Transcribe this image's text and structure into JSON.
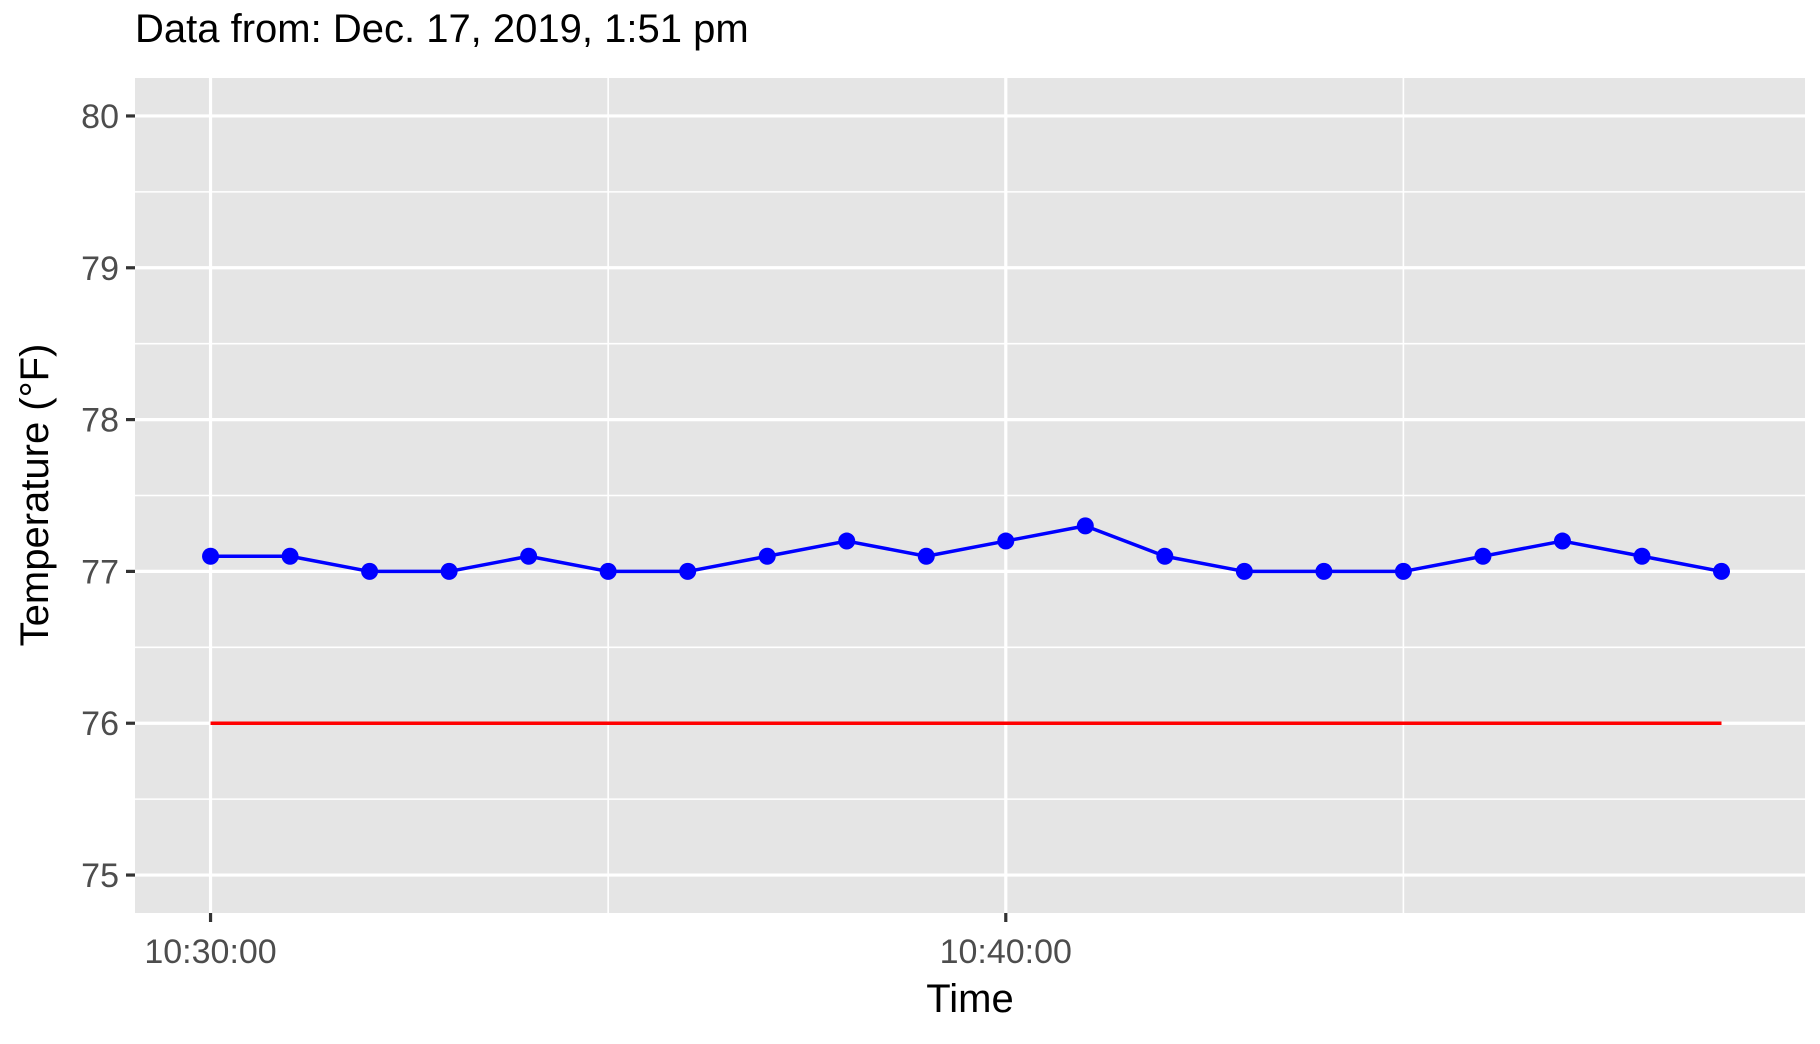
{
  "chart_data": {
    "type": "line",
    "title": "Data from: Dec. 17, 2019, 1:51 pm",
    "xlabel": "Time",
    "ylabel": "Temperature (°F)",
    "ylim": [
      74.75,
      80.25
    ],
    "xlim_minutes": [
      -0.95,
      20.05
    ],
    "yticks": [
      75,
      76,
      77,
      78,
      79,
      80
    ],
    "xticks": [
      {
        "label": "10:30:00",
        "minute": 0
      },
      {
        "label": "10:40:00",
        "minute": 10
      }
    ],
    "grid": true,
    "panel_background": "#e5e5e5",
    "series": [
      {
        "color": "#0000ff",
        "marker": "circle",
        "x": [
          "10:30:00",
          "10:31:00",
          "10:32:00",
          "10:33:00",
          "10:34:00",
          "10:35:00",
          "10:36:00",
          "10:37:00",
          "10:38:00",
          "10:39:00",
          "10:40:00",
          "10:41:00",
          "10:42:00",
          "10:43:00",
          "10:44:00",
          "10:45:00",
          "10:46:00",
          "10:47:00",
          "10:48:00",
          "10:49:00"
        ],
        "values": [
          77.1,
          77.1,
          77.0,
          77.0,
          77.1,
          77.0,
          77.0,
          77.1,
          77.2,
          77.1,
          77.2,
          77.3,
          77.1,
          77.0,
          77.0,
          77.0,
          77.1,
          77.2,
          77.1,
          77.0
        ]
      },
      {
        "color": "#ff0000",
        "marker": "none",
        "x": [
          "10:30:00",
          "10:49:00"
        ],
        "values": [
          76,
          76
        ]
      }
    ]
  }
}
